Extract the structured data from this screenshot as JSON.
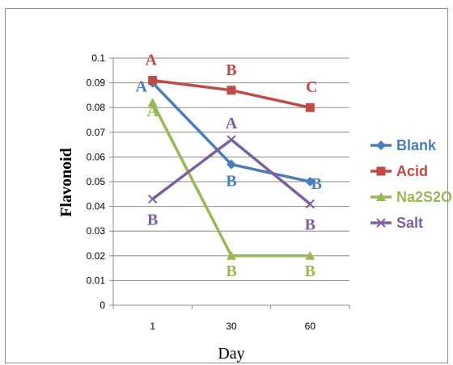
{
  "chart_data": {
    "type": "line",
    "title": "",
    "xlabel": "Day",
    "ylabel": "Flavonoid",
    "categories": [
      "1",
      "30",
      "60"
    ],
    "ylim": [
      0,
      0.1
    ],
    "yticks": [
      "0",
      "0.01",
      "0.02",
      "0.03",
      "0.04",
      "0.05",
      "0.06",
      "0.07",
      "0.08",
      "0.09",
      "0.1"
    ],
    "grid": "horizontal",
    "legend_position": "right",
    "series": [
      {
        "name": "Blank",
        "values": [
          0.09,
          0.057,
          0.05
        ],
        "color": "#4a7ebb",
        "marker": "diamond",
        "labels": [
          "A",
          "B",
          "B"
        ]
      },
      {
        "name": "Acid",
        "values": [
          0.091,
          0.087,
          0.08
        ],
        "color": "#be4b48",
        "marker": "square",
        "labels": [
          "A",
          "B",
          "C"
        ]
      },
      {
        "name": "Na2S2O",
        "values": [
          0.082,
          0.02,
          0.02
        ],
        "color": "#98b954",
        "marker": "triangle",
        "labels": [
          "A",
          "B",
          "B"
        ]
      },
      {
        "name": "Salt",
        "values": [
          0.043,
          0.067,
          0.041
        ],
        "color": "#7d60a0",
        "marker": "x",
        "labels": [
          "B",
          "A",
          "B"
        ]
      }
    ]
  }
}
